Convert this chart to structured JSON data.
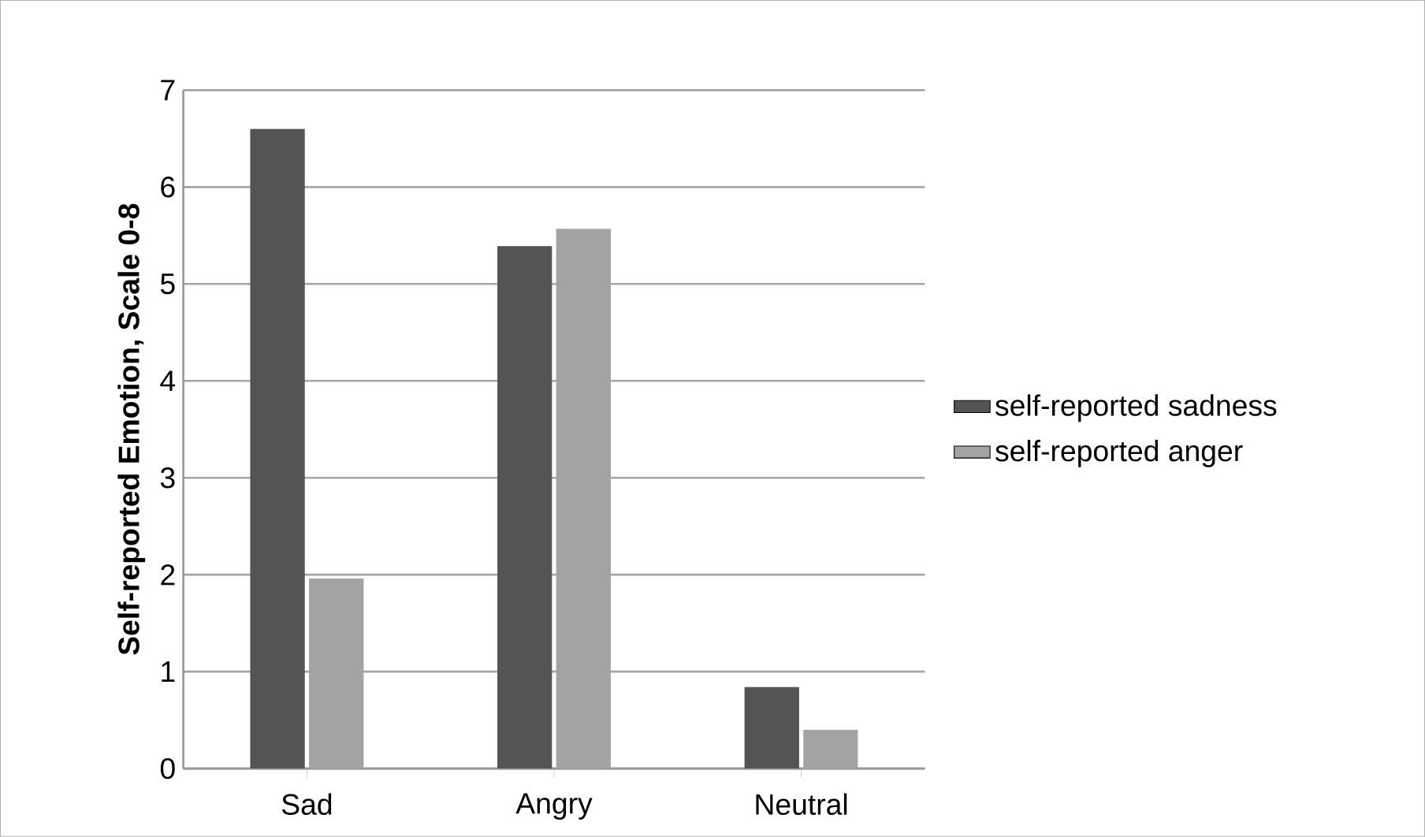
{
  "chart_data": {
    "type": "bar",
    "ylabel": "Self-reported Emotion, Scale 0-8",
    "categories": [
      "Sad",
      "Angry",
      "Neutral"
    ],
    "series": [
      {
        "name": "self-reported sadness",
        "color": "#545454",
        "values": [
          6.6,
          5.39,
          0.84
        ]
      },
      {
        "name": "self-reported anger",
        "color": "#a3a3a3",
        "values": [
          1.96,
          5.57,
          0.4
        ]
      }
    ],
    "ylim": [
      0,
      7
    ],
    "yticks": [
      0,
      1,
      2,
      3,
      4,
      5,
      6,
      7
    ],
    "grid": "y",
    "legend": "right"
  }
}
